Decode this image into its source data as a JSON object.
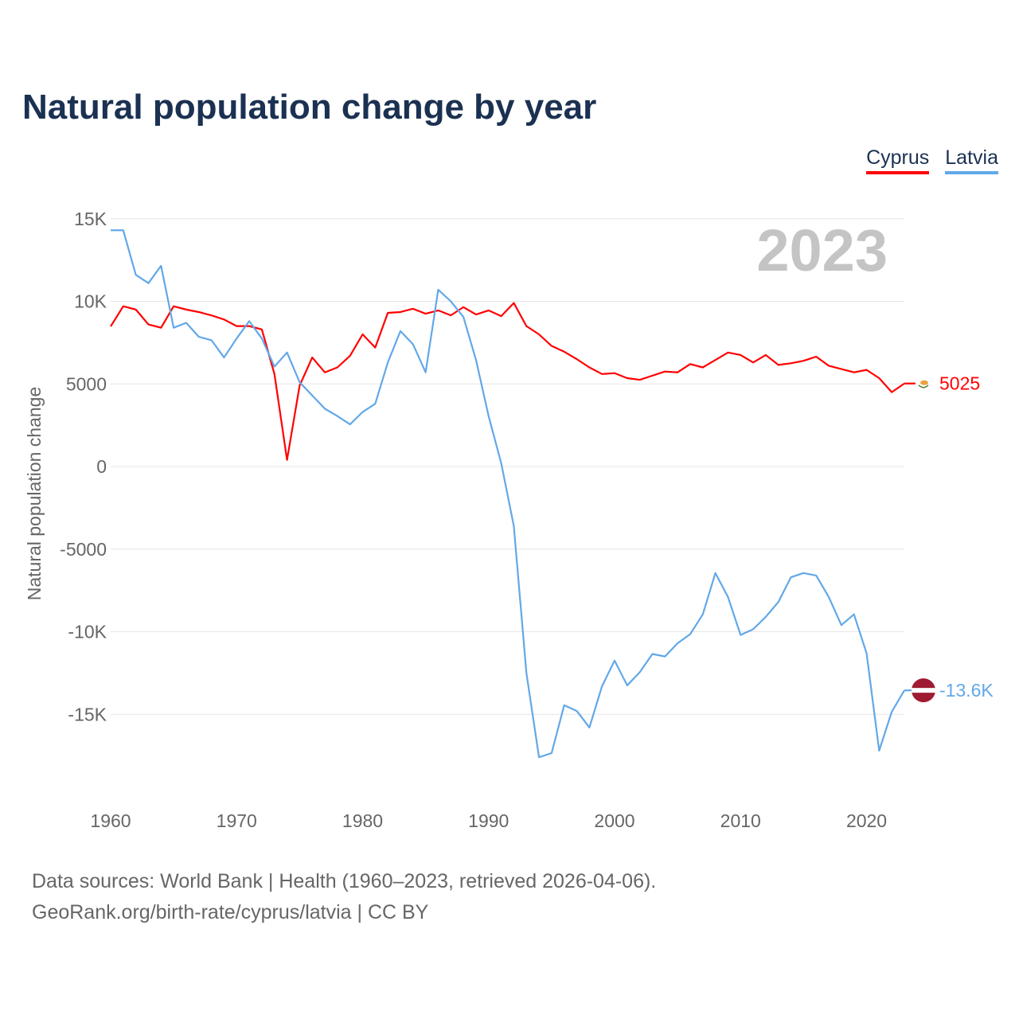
{
  "title": "Natural population change by year",
  "legend": [
    {
      "label": "Cyprus",
      "color": "#ff0000"
    },
    {
      "label": "Latvia",
      "color": "#62a8e8"
    }
  ],
  "year_watermark": "2023",
  "source_line1": "Data sources: World Bank | Health (1960–2023, retrieved 2026-04-06).",
  "source_line2": "GeoRank.org/birth-rate/cyprus/latvia | CC BY",
  "chart_data": {
    "type": "line",
    "title": "Natural population change by year",
    "xlabel": "",
    "ylabel": "Natural population change",
    "xlim": [
      1960,
      2023
    ],
    "ylim": [
      -20000,
      15000
    ],
    "yticks": [
      {
        "v": 15000,
        "label": "15K"
      },
      {
        "v": 10000,
        "label": "10K"
      },
      {
        "v": 5000,
        "label": "5000"
      },
      {
        "v": 0,
        "label": "0"
      },
      {
        "v": -5000,
        "label": "-5000"
      },
      {
        "v": -10000,
        "label": "-10K"
      },
      {
        "v": -15000,
        "label": "-15K"
      }
    ],
    "xticks": [
      {
        "v": 1960,
        "label": "1960"
      },
      {
        "v": 1970,
        "label": "1970"
      },
      {
        "v": 1980,
        "label": "1980"
      },
      {
        "v": 1990,
        "label": "1990"
      },
      {
        "v": 2000,
        "label": "2000"
      },
      {
        "v": 2010,
        "label": "2010"
      },
      {
        "v": 2020,
        "label": "2020"
      }
    ],
    "x_start": 1960,
    "series": [
      {
        "name": "Cyprus",
        "color": "#ff0000",
        "end_label": "5025",
        "values": [
          8480,
          9700,
          9500,
          8600,
          8400,
          9700,
          9500,
          9350,
          9150,
          8900,
          8500,
          8500,
          8300,
          5600,
          400,
          4900,
          6600,
          5700,
          6000,
          6700,
          8000,
          7200,
          9300,
          9350,
          9550,
          9250,
          9450,
          9150,
          9650,
          9200,
          9450,
          9100,
          9900,
          8500,
          8000,
          7300,
          6950,
          6500,
          6000,
          5600,
          5650,
          5350,
          5250,
          5500,
          5750,
          5700,
          6200,
          6000,
          6450,
          6900,
          6750,
          6300,
          6750,
          6150,
          6250,
          6400,
          6650,
          6100,
          5900,
          5700,
          5850,
          5350,
          4500,
          5025
        ]
      },
      {
        "name": "Latvia",
        "color": "#62a8e8",
        "end_label": "-13.6K",
        "values": [
          14300,
          14300,
          11600,
          11100,
          12150,
          8400,
          8700,
          7850,
          7650,
          6600,
          7750,
          8800,
          7750,
          6050,
          6900,
          5100,
          4300,
          3500,
          3050,
          2550,
          3300,
          3800,
          6300,
          8200,
          7400,
          5700,
          10700,
          10000,
          9050,
          6450,
          3050,
          200,
          -3600,
          -12500,
          -17600,
          -17350,
          -14450,
          -14800,
          -15800,
          -13300,
          -11750,
          -13250,
          -12450,
          -11350,
          -11500,
          -10700,
          -10150,
          -8950,
          -6450,
          -7900,
          -10200,
          -9850,
          -9100,
          -8200,
          -6700,
          -6450,
          -6600,
          -7900,
          -9600,
          -8950,
          -11300,
          -17200,
          -14850,
          -13550
        ]
      }
    ]
  }
}
